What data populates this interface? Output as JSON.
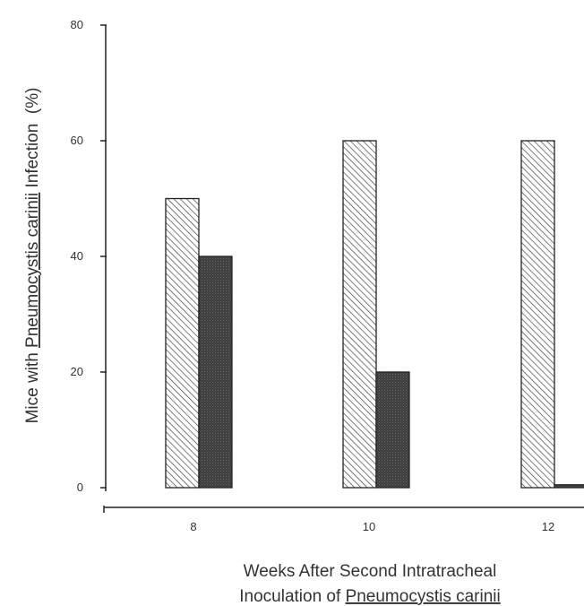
{
  "chart_data": {
    "type": "bar",
    "title": "",
    "categories": [
      "8",
      "10",
      "12"
    ],
    "series": [
      {
        "pattern": "hatched",
        "color": "#ffffff",
        "values": [
          50,
          60,
          60
        ]
      },
      {
        "pattern": "dark-stippled",
        "color": "#3a3a3a",
        "values": [
          40,
          20,
          0.5
        ]
      }
    ],
    "yticks": [
      "0",
      "20",
      "40",
      "60",
      "80"
    ],
    "ylim": [
      0,
      80
    ],
    "ylabel": {
      "before": "Mice with ",
      "underlined": "Pneumocystis carinii",
      "after": " Infection  (%)"
    },
    "xlabel": {
      "line1": "Weeks After Second Intratracheal",
      "line2_before": "Inoculation of ",
      "line2_underlined": "Pneumocystis carinii"
    },
    "grid": false,
    "legend": "none"
  }
}
